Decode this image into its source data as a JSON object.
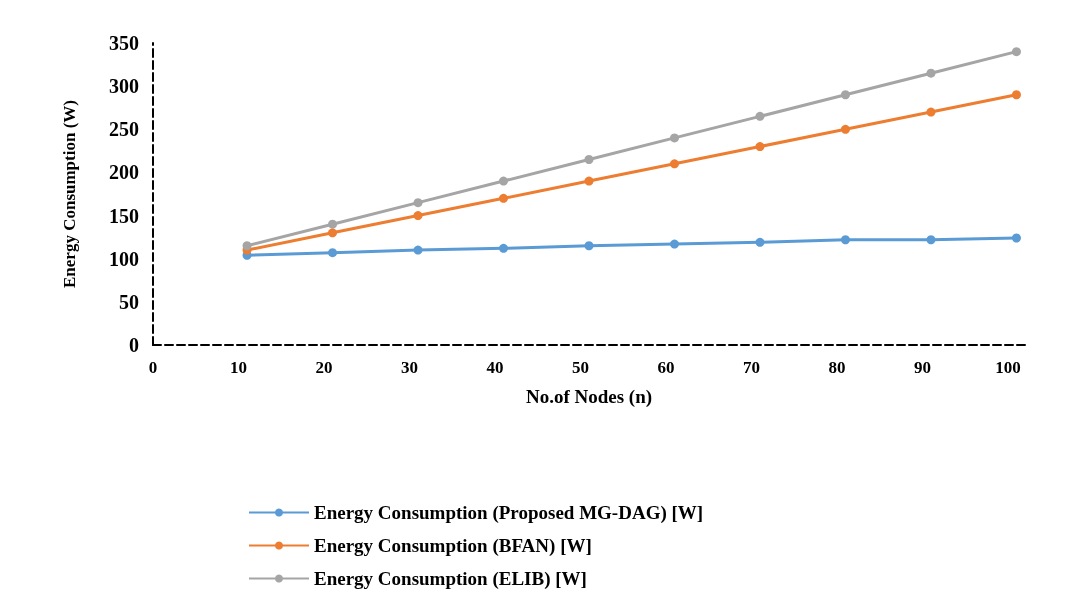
{
  "chart_data": {
    "type": "line",
    "xlabel": "No.of Nodes (n)",
    "ylabel": "Energy Consumption (W)",
    "x": [
      11,
      21,
      31,
      41,
      51,
      61,
      71,
      81,
      91,
      101
    ],
    "xlim": [
      0,
      102
    ],
    "xticks": [
      0,
      10,
      20,
      30,
      40,
      50,
      60,
      70,
      80,
      90,
      100
    ],
    "ylim": [
      0,
      350
    ],
    "yticks": [
      0,
      50,
      100,
      150,
      200,
      250,
      300,
      350
    ],
    "grid": false,
    "legend": "bottom",
    "marker": "circle",
    "line_style": "solid",
    "series": [
      {
        "name": "Energy Consumption (Proposed MG-DAG) [W]",
        "color": "#5b9bd5",
        "values": [
          104,
          107,
          110,
          112,
          115,
          117,
          119,
          122,
          122,
          124
        ]
      },
      {
        "name": "Energy Consumption (BFAN) [W]",
        "color": "#ed7d31",
        "values": [
          110,
          130,
          150,
          170,
          190,
          210,
          230,
          250,
          270,
          290
        ]
      },
      {
        "name": "Energy Consumption (ELIB) [W]",
        "color": "#a5a5a5",
        "values": [
          115,
          140,
          165,
          190,
          215,
          240,
          265,
          290,
          315,
          340
        ]
      }
    ]
  }
}
